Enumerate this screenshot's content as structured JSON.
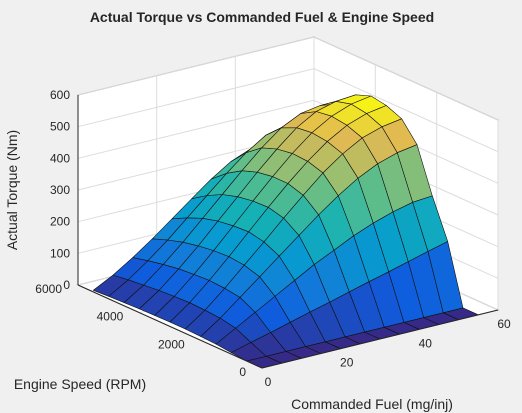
{
  "chart_data": {
    "type": "surface",
    "title": "Actual Torque vs Commanded Fuel & Engine Speed",
    "xlabel": "Commanded Fuel (mg/inj)",
    "ylabel": "Engine Speed (RPM)",
    "zlabel": "Actual Torque (Nm)",
    "xlim": [
      0,
      60
    ],
    "ylim": [
      0,
      6000
    ],
    "zlim": [
      0,
      600
    ],
    "x_ticks": [
      0,
      20,
      40,
      60
    ],
    "y_ticks": [
      0,
      2000,
      4000,
      6000
    ],
    "z_ticks": [
      0,
      100,
      200,
      300,
      400,
      500,
      600
    ],
    "grid": true,
    "colormap": "parula",
    "x": [
      0,
      5,
      10,
      15,
      20,
      25,
      30,
      35,
      40,
      45,
      50,
      55
    ],
    "y": [
      0,
      500,
      1000,
      1500,
      2000,
      2500,
      3000,
      3500,
      4000,
      4500,
      5000,
      5500
    ],
    "z": [
      [
        0,
        0,
        0,
        0,
        0,
        0,
        0,
        0,
        0,
        0,
        0,
        0
      ],
      [
        0,
        0,
        0,
        0,
        0,
        0,
        0,
        0,
        0,
        0,
        0,
        0
      ],
      [
        5,
        22,
        38,
        55,
        72,
        88,
        105,
        122,
        138,
        155,
        172,
        188
      ],
      [
        10,
        45,
        80,
        115,
        150,
        185,
        215,
        245,
        270,
        290,
        305,
        310
      ],
      [
        12,
        55,
        105,
        155,
        205,
        255,
        305,
        350,
        390,
        420,
        440,
        450
      ],
      [
        14,
        58,
        112,
        170,
        228,
        288,
        345,
        400,
        445,
        480,
        500,
        510
      ],
      [
        14,
        60,
        115,
        175,
        238,
        300,
        360,
        415,
        462,
        498,
        520,
        530
      ],
      [
        13,
        58,
        112,
        172,
        235,
        298,
        360,
        418,
        468,
        505,
        528,
        538
      ],
      [
        12,
        55,
        108,
        165,
        228,
        290,
        352,
        410,
        462,
        498,
        515,
        520
      ],
      [
        10,
        50,
        100,
        155,
        215,
        275,
        335,
        392,
        440,
        470,
        480,
        470
      ],
      [
        8,
        45,
        90,
        140,
        195,
        250,
        305,
        355,
        395,
        410,
        400,
        380
      ],
      [
        5,
        38,
        78,
        122,
        170,
        218,
        265,
        305,
        330,
        330,
        310,
        290
      ]
    ]
  }
}
